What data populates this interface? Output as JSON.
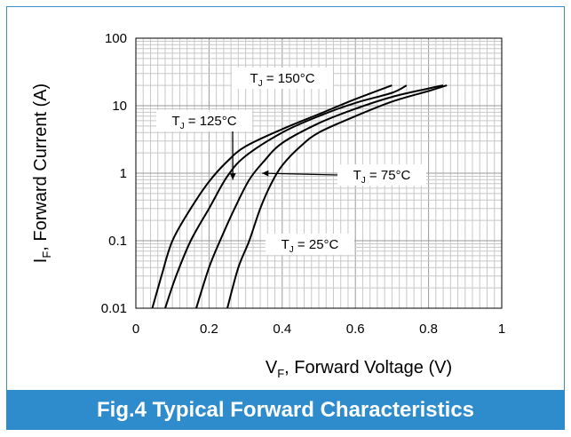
{
  "chart_data": {
    "type": "line",
    "title": "",
    "xlabel": {
      "main": "V",
      "sub": "F",
      "rest": ", Forward Voltage (V)"
    },
    "ylabel": {
      "main": "I",
      "sub": "F",
      "rest": ", Forward Current (A)"
    },
    "xlim": [
      0,
      1
    ],
    "ylim": [
      0.01,
      100
    ],
    "yscale": "log",
    "grid": true,
    "x_ticks": [
      "0",
      "0.2",
      "0.4",
      "0.6",
      "0.8",
      "1"
    ],
    "y_ticks": [
      "0.01",
      "0.1",
      "1",
      "10",
      "100"
    ],
    "series": [
      {
        "name": "T_J = 150°C",
        "points": [
          [
            0.045,
            0.01
          ],
          [
            0.07,
            0.03
          ],
          [
            0.1,
            0.1
          ],
          [
            0.15,
            0.3
          ],
          [
            0.2,
            0.75
          ],
          [
            0.25,
            1.5
          ],
          [
            0.3,
            2.5
          ],
          [
            0.4,
            4.5
          ],
          [
            0.5,
            7.5
          ],
          [
            0.6,
            12.5
          ],
          [
            0.7,
            20
          ]
        ]
      },
      {
        "name": "T_J = 125°C",
        "points": [
          [
            0.08,
            0.01
          ],
          [
            0.11,
            0.03
          ],
          [
            0.15,
            0.1
          ],
          [
            0.2,
            0.3
          ],
          [
            0.25,
            0.9
          ],
          [
            0.3,
            1.8
          ],
          [
            0.4,
            4
          ],
          [
            0.5,
            7
          ],
          [
            0.6,
            11
          ],
          [
            0.7,
            15.5
          ],
          [
            0.74,
            20
          ]
        ]
      },
      {
        "name": "T_J = 75°C",
        "points": [
          [
            0.165,
            0.01
          ],
          [
            0.2,
            0.04
          ],
          [
            0.23,
            0.1
          ],
          [
            0.27,
            0.3
          ],
          [
            0.31,
            0.8
          ],
          [
            0.35,
            1.5
          ],
          [
            0.4,
            2.8
          ],
          [
            0.5,
            5.5
          ],
          [
            0.6,
            9
          ],
          [
            0.7,
            13.5
          ],
          [
            0.8,
            18
          ],
          [
            0.84,
            20
          ]
        ]
      },
      {
        "name": "T_J = 25°C",
        "points": [
          [
            0.25,
            0.01
          ],
          [
            0.28,
            0.04
          ],
          [
            0.31,
            0.1
          ],
          [
            0.34,
            0.3
          ],
          [
            0.37,
            0.7
          ],
          [
            0.4,
            1.3
          ],
          [
            0.45,
            2.5
          ],
          [
            0.5,
            4
          ],
          [
            0.6,
            7
          ],
          [
            0.7,
            11.5
          ],
          [
            0.8,
            16.5
          ],
          [
            0.85,
            20
          ]
        ]
      }
    ],
    "annotations": [
      {
        "label": "T_J = 150°C",
        "main": "T",
        "sub": "J",
        "rest": " = 150°C",
        "arrow": false
      },
      {
        "label": "T_J = 125°C",
        "main": "T",
        "sub": "J",
        "rest": " = 125°C",
        "arrow": true,
        "arrow_to": [
          0.265,
          0.8
        ]
      },
      {
        "label": "T_J = 75°C",
        "main": "T",
        "sub": "J",
        "rest": " = 75°C",
        "arrow": true,
        "arrow_to": [
          0.345,
          1.0
        ]
      },
      {
        "label": "T_J = 25°C",
        "main": "T",
        "sub": "J",
        "rest": " = 25°C",
        "arrow": false
      }
    ]
  },
  "caption": "Fig.4 Typical Forward Characteristics",
  "colors": {
    "accent": "#2e8ccc",
    "line": "#000000",
    "grid": "#bdbdbd"
  }
}
